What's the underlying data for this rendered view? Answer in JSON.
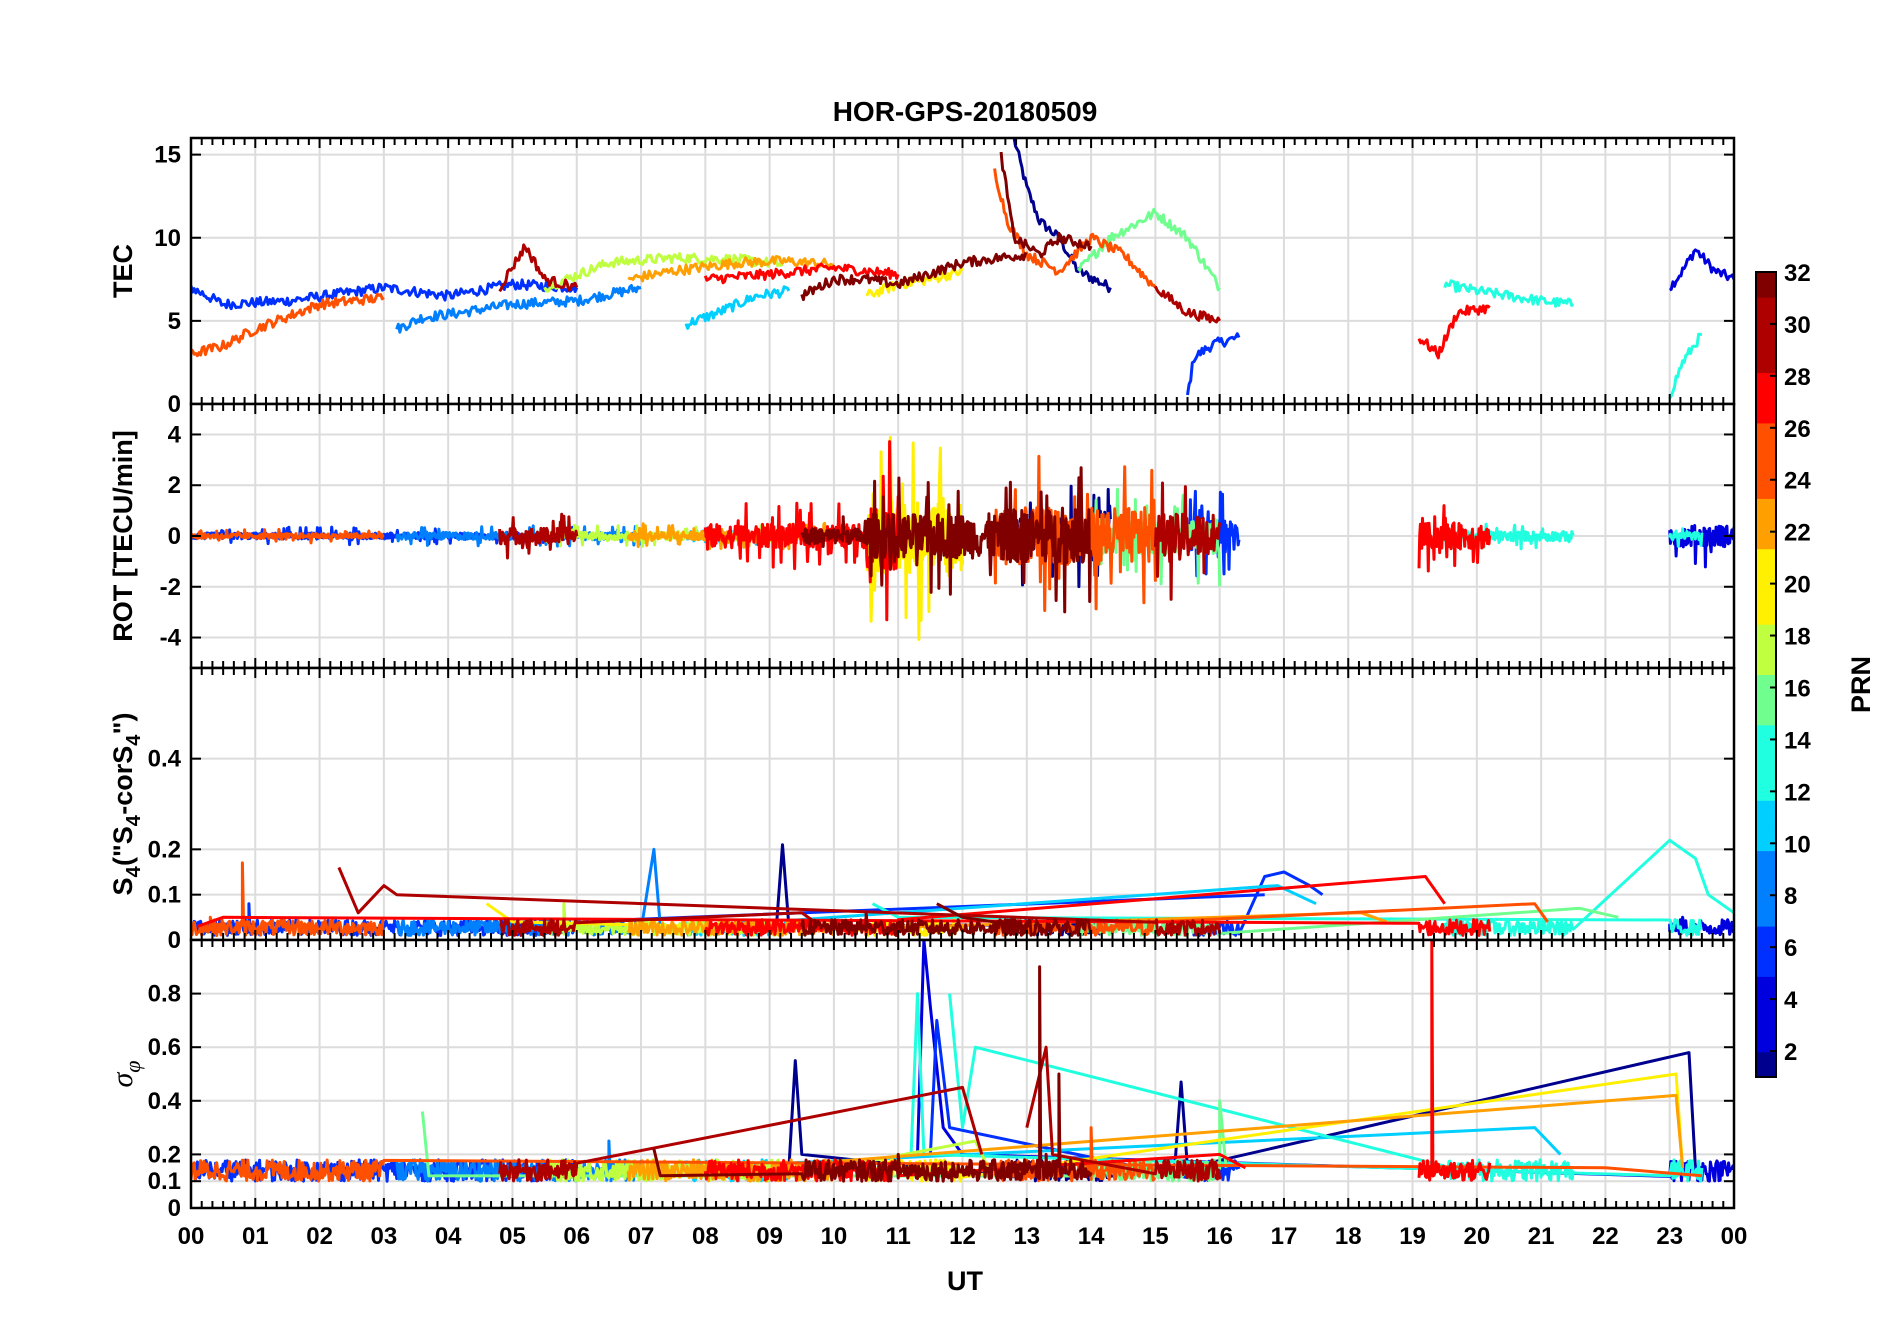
{
  "chart_data": {
    "type": "line",
    "title": "HOR-GPS-20180509",
    "x_axis": {
      "label": "UT",
      "range": [
        0,
        24
      ],
      "tick_labels": [
        "00",
        "01",
        "02",
        "03",
        "04",
        "05",
        "06",
        "07",
        "08",
        "09",
        "10",
        "11",
        "12",
        "13",
        "14",
        "15",
        "16",
        "17",
        "18",
        "19",
        "20",
        "21",
        "22",
        "23",
        "00"
      ],
      "grid": true
    },
    "panels": [
      {
        "name": "tec",
        "ylabel": "TEC",
        "ylim": [
          0,
          16
        ],
        "yticks": [
          0,
          5,
          10,
          15
        ],
        "grid": true
      },
      {
        "name": "rot",
        "ylabel": "ROT [TECU/min]",
        "ylim": [
          -5.2,
          5.2
        ],
        "yticks": [
          -4,
          -2,
          0,
          2,
          4
        ],
        "grid": true
      },
      {
        "name": "s4",
        "ylabel_main": "S",
        "ylabel_sub": "4",
        "ylabel_rest": " (\"S",
        "ylabel_sub2": "4",
        "ylabel_rest2": "-corS",
        "ylabel_sub3": "4",
        "ylabel_end": "\")",
        "ylim": [
          0,
          0.6
        ],
        "yticks": [
          0,
          0.1,
          0.2,
          0.4
        ],
        "grid": true
      },
      {
        "name": "sigma",
        "ylabel_main": "σ",
        "ylabel_sub": "φ",
        "ylim": [
          0,
          1
        ],
        "yticks": [
          0,
          0.1,
          0.2,
          0.4,
          0.6,
          0.8
        ],
        "grid": true
      }
    ],
    "colorbar": {
      "label": "PRN",
      "range": [
        1,
        32
      ],
      "tick_labels": [
        "2",
        "4",
        "6",
        "8",
        "10",
        "12",
        "14",
        "16",
        "18",
        "20",
        "22",
        "24",
        "26",
        "28",
        "30",
        "32"
      ],
      "colormap": "jet",
      "colors": [
        "#00008f",
        "#0000df",
        "#0030ff",
        "#0080ff",
        "#00cfff",
        "#20ffdf",
        "#70ff8f",
        "#bfff40",
        "#ffef00",
        "#ff9f00",
        "#ff5000",
        "#ff0000",
        "#af0000",
        "#800000"
      ]
    },
    "series": [
      {
        "prn": 1,
        "tec": [
          [
            12.8,
            16
          ],
          [
            13.0,
            13
          ],
          [
            13.2,
            11
          ],
          [
            13.5,
            10
          ],
          [
            13.8,
            8
          ],
          [
            14.3,
            7
          ]
        ],
        "rot_amp": 2.0,
        "s4": [
          [
            9.1,
            0.02
          ],
          [
            9.2,
            0.21
          ],
          [
            9.3,
            0.03
          ],
          [
            14.0,
            0.02
          ]
        ],
        "sigma": [
          [
            9.3,
            0.15
          ],
          [
            9.4,
            0.55
          ],
          [
            9.5,
            0.2
          ],
          [
            15.3,
            0.15
          ],
          [
            15.4,
            0.47
          ],
          [
            15.5,
            0.15
          ],
          [
            23.3,
            0.58
          ],
          [
            23.4,
            0.15
          ]
        ]
      },
      {
        "prn": 3,
        "tec": [
          [
            23.0,
            7
          ],
          [
            23.2,
            8
          ],
          [
            23.4,
            9.3
          ],
          [
            23.7,
            8
          ],
          [
            24,
            7.5
          ]
        ],
        "rot_amp": 3.5,
        "s4": [
          [
            23.0,
            0.02
          ],
          [
            23.2,
            0.05
          ],
          [
            24,
            0.03
          ]
        ],
        "sigma": [
          [
            11.3,
            0.2
          ],
          [
            11.4,
            1.0
          ],
          [
            11.5,
            0.75
          ],
          [
            11.7,
            0.3
          ],
          [
            12.0,
            0.2
          ]
        ]
      },
      {
        "prn": 5,
        "tec": [
          [
            15.5,
            0.5
          ],
          [
            15.6,
            2.8
          ],
          [
            15.9,
            3.6
          ],
          [
            16.3,
            4.0
          ]
        ],
        "rot_amp": 1.8,
        "s4": [
          [
            16.7,
            0.14
          ],
          [
            17.0,
            0.15
          ],
          [
            17.4,
            0.12
          ],
          [
            17.6,
            0.1
          ]
        ],
        "sigma": [
          [
            11.5,
            0.2
          ],
          [
            11.6,
            0.7
          ],
          [
            11.8,
            0.3
          ]
        ]
      },
      {
        "prn": 6,
        "tec": [
          [
            0,
            7
          ],
          [
            0.5,
            6
          ],
          [
            1.5,
            6.2
          ],
          [
            3.0,
            7
          ],
          [
            4.0,
            6.5
          ],
          [
            5.0,
            7.2
          ],
          [
            6.0,
            7.0
          ]
        ],
        "rot_amp": 1.0,
        "s4": [
          [
            0.9,
            0.08
          ],
          [
            1.1,
            0.03
          ],
          [
            16.7,
            0.1
          ]
        ],
        "sigma": [
          [
            0,
            0.15
          ],
          [
            4,
            0.12
          ]
        ]
      },
      {
        "prn": 8,
        "tec": [
          [
            3.2,
            4.5
          ],
          [
            3.6,
            5.2
          ],
          [
            4.2,
            5.5
          ],
          [
            5.0,
            6.0
          ],
          [
            6.0,
            6.2
          ],
          [
            7.0,
            7.0
          ]
        ],
        "rot_amp": 1.2,
        "s4": [
          [
            7.2,
            0.2
          ],
          [
            7.3,
            0.03
          ]
        ],
        "sigma": [
          [
            6.0,
            0.15
          ],
          [
            6.5,
            0.25
          ],
          [
            7.0,
            0.15
          ]
        ]
      },
      {
        "prn": 10,
        "tec": [
          [
            7.7,
            4.8
          ],
          [
            8.2,
            5.5
          ],
          [
            8.8,
            6.5
          ],
          [
            9.3,
            6.8
          ]
        ],
        "rot_amp": 1.0,
        "s4": [
          [
            16.9,
            0.12
          ],
          [
            17.5,
            0.08
          ]
        ],
        "sigma": [
          [
            20.9,
            0.3
          ],
          [
            21.3,
            0.2
          ]
        ]
      },
      {
        "prn": 12,
        "tec": [
          [
            19.5,
            7.2
          ],
          [
            20,
            6.8
          ],
          [
            21,
            6.2
          ],
          [
            21.5,
            6.0
          ]
        ],
        "rot_amp": 1.5,
        "s4": [
          [
            23.0,
            0.22
          ],
          [
            23.4,
            0.18
          ],
          [
            23.6,
            0.1
          ],
          [
            24,
            0.06
          ]
        ],
        "sigma": [
          [
            11.8,
            0.8
          ],
          [
            12.0,
            0.3
          ],
          [
            12.2,
            0.6
          ]
        ]
      },
      {
        "prn": 14,
        "tec": [
          [
            23.0,
            0.5
          ],
          [
            23.2,
            2.5
          ],
          [
            23.5,
            4.2
          ]
        ],
        "rot_amp": 1.2,
        "s4": [
          [
            10.6,
            0.08
          ],
          [
            11.0,
            0.05
          ]
        ],
        "sigma": [
          [
            11.2,
            0.2
          ],
          [
            11.3,
            0.8
          ],
          [
            11.4,
            0.2
          ]
        ]
      },
      {
        "prn": 16,
        "tec": [
          [
            13.8,
            8
          ],
          [
            14.3,
            10
          ],
          [
            15.0,
            11.5
          ],
          [
            15.5,
            10
          ],
          [
            16.0,
            7
          ]
        ],
        "rot_amp": 2.0,
        "s4": [
          [
            21.6,
            0.07
          ],
          [
            22.2,
            0.05
          ]
        ],
        "sigma": [
          [
            3.6,
            0.36
          ],
          [
            3.7,
            0.12
          ],
          [
            16,
            0.4
          ],
          [
            16.1,
            0.15
          ]
        ]
      },
      {
        "prn": 18,
        "tec": [
          [
            5.5,
            7
          ],
          [
            6.5,
            8.5
          ],
          [
            7.5,
            8.8
          ],
          [
            8.5,
            8.7
          ],
          [
            9.2,
            8.4
          ]
        ],
        "rot_amp": 1.2,
        "s4": [
          [
            5.8,
            0.08
          ],
          [
            6.2,
            0.04
          ]
        ],
        "sigma": [
          [
            12.2,
            0.25
          ],
          [
            12.4,
            0.15
          ]
        ]
      },
      {
        "prn": 20,
        "tec": [
          [
            10.5,
            6.5
          ],
          [
            11.0,
            7.2
          ],
          [
            11.5,
            7.5
          ],
          [
            12.0,
            8.0
          ]
        ],
        "rot_amp": 4.2,
        "s4": [
          [
            4.6,
            0.08
          ],
          [
            5.0,
            0.04
          ]
        ],
        "sigma": [
          [
            23.1,
            0.5
          ],
          [
            23.2,
            0.15
          ]
        ]
      },
      {
        "prn": 22,
        "tec": [
          [
            6.8,
            7.5
          ],
          [
            7.5,
            8.0
          ],
          [
            8.5,
            8.5
          ],
          [
            9.2,
            8.6
          ],
          [
            10,
            8.4
          ]
        ],
        "rot_amp": 1.5,
        "s4": [
          [
            18.2,
            0.06
          ],
          [
            18.6,
            0.04
          ]
        ],
        "sigma": [
          [
            23.1,
            0.42
          ],
          [
            23.2,
            0.15
          ]
        ]
      },
      {
        "prn": 24,
        "tec": [
          [
            0,
            3.0
          ],
          [
            0.5,
            3.5
          ],
          [
            1.0,
            4.5
          ],
          [
            2.0,
            6.0
          ],
          [
            3.0,
            6.4
          ]
        ],
        "rot_amp": 0.8,
        "s4": [
          [
            0.3,
            0.05
          ],
          [
            0.8,
            0.17
          ],
          [
            0.9,
            0.04
          ]
        ],
        "sigma": [
          [
            22.0,
            0.15
          ],
          [
            23.5,
            0.12
          ]
        ]
      },
      {
        "prn": 25,
        "tec": [
          [
            12.5,
            14
          ],
          [
            12.7,
            11
          ],
          [
            13.0,
            9
          ],
          [
            13.5,
            8
          ],
          [
            14.0,
            10
          ],
          [
            14.5,
            9
          ],
          [
            15.0,
            7
          ]
        ],
        "rot_amp": 3.2,
        "s4": [
          [
            20.9,
            0.08
          ],
          [
            21.1,
            0.04
          ]
        ],
        "sigma": [
          [
            14,
            0.3
          ],
          [
            14.4,
            0.15
          ]
        ]
      },
      {
        "prn": 27,
        "tec": [
          [
            19.1,
            4
          ],
          [
            19.4,
            3
          ],
          [
            19.7,
            5.5
          ],
          [
            20.2,
            5.8
          ]
        ],
        "rot_amp": 4.2,
        "s4": [
          [
            0.1,
            0.03
          ],
          [
            0.5,
            0.05
          ]
        ],
        "sigma": [
          [
            19.2,
            0.15
          ],
          [
            19.3,
            1.0
          ],
          [
            19.4,
            0.15
          ]
        ]
      },
      {
        "prn": 28,
        "tec": [
          [
            8.0,
            7.5
          ],
          [
            9.0,
            7.8
          ],
          [
            10.0,
            8.2
          ],
          [
            11.0,
            7.8
          ]
        ],
        "rot_amp": 3.8,
        "s4": [
          [
            19.2,
            0.14
          ],
          [
            19.5,
            0.08
          ]
        ],
        "sigma": [
          [
            16,
            0.2
          ],
          [
            16.4,
            0.15
          ]
        ]
      },
      {
        "prn": 29,
        "tec": [
          [
            15.0,
            7
          ],
          [
            15.5,
            5.5
          ],
          [
            16.0,
            5.0
          ]
        ],
        "rot_amp": 2.5,
        "s4": [
          [
            2.3,
            0.16
          ],
          [
            2.6,
            0.06
          ],
          [
            3.0,
            0.12
          ],
          [
            3.2,
            0.1
          ]
        ],
        "sigma": [
          [
            13.0,
            0.3
          ],
          [
            13.3,
            0.6
          ],
          [
            13.4,
            0.2
          ]
        ]
      },
      {
        "prn": 30,
        "tec": [
          [
            4.8,
            7
          ],
          [
            5.2,
            9.5
          ],
          [
            5.5,
            7.5
          ],
          [
            6.0,
            7.0
          ]
        ],
        "rot_amp": 2.6,
        "s4": [
          [
            9.5,
            0.06
          ],
          [
            9.8,
            0.03
          ]
        ],
        "sigma": [
          [
            12.0,
            0.45
          ],
          [
            12.3,
            0.2
          ]
        ]
      },
      {
        "prn": 31,
        "tec": [
          [
            12.6,
            15
          ],
          [
            12.8,
            10
          ],
          [
            13.2,
            9
          ],
          [
            13.5,
            10
          ],
          [
            14.0,
            9.5
          ]
        ],
        "rot_amp": 3.0,
        "s4": [
          [
            11.6,
            0.08
          ],
          [
            12.0,
            0.05
          ]
        ],
        "sigma": [
          [
            13.2,
            0.9
          ],
          [
            13.3,
            0.2
          ],
          [
            13.5,
            0.5
          ],
          [
            13.6,
            0.15
          ]
        ]
      },
      {
        "prn": 32,
        "tec": [
          [
            9.5,
            6.5
          ],
          [
            10.0,
            7.5
          ],
          [
            10.5,
            7.5
          ],
          [
            11.0,
            7.2
          ],
          [
            12.0,
            8.5
          ],
          [
            13.0,
            9.0
          ]
        ],
        "rot_amp": 2.5,
        "s4": [
          [
            10.0,
            0.04
          ],
          [
            10.5,
            0.06
          ]
        ],
        "sigma": [
          [
            7.2,
            0.22
          ],
          [
            7.3,
            0.12
          ],
          [
            11.0,
            0.2
          ]
        ]
      }
    ]
  }
}
